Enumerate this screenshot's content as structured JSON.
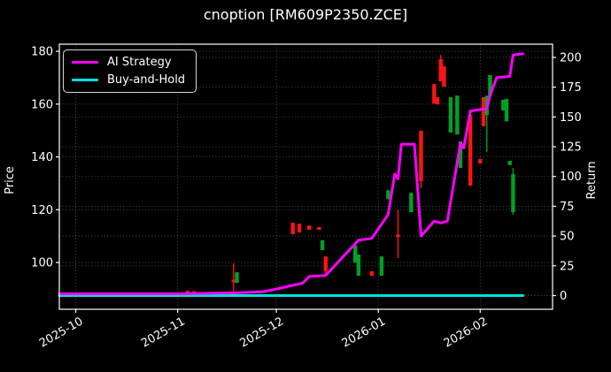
{
  "title": "cnoption [RM609P2350.ZCE]",
  "chart_data": {
    "type": "candlestick+line",
    "title": "cnoption [RM609P2350.ZCE]",
    "ylabel_left": "Price",
    "ylabel_right": "Return",
    "x_tick_labels": [
      "2025-10",
      "2025-11",
      "2025-12",
      "2026-01",
      "2026-02"
    ],
    "x_tick_dates": [
      "2025-10-01",
      "2025-11-01",
      "2025-12-01",
      "2026-01-01",
      "2026-02-01"
    ],
    "x_domain": [
      "2025-09-26",
      "2026-02-23"
    ],
    "price_ticks": [
      100,
      120,
      140,
      160,
      180
    ],
    "price_ylim": [
      82.3,
      182.7
    ],
    "return_ticks": [
      0,
      25,
      50,
      75,
      100,
      125,
      150,
      175,
      200
    ],
    "return_ylim": [
      -11.5,
      211.1
    ],
    "grid": true,
    "legend_position": "upper-left",
    "colors": {
      "background": "#000000",
      "text": "#ffffff",
      "grid": "#ffffff",
      "ai_strategy": "#ff00ff",
      "buy_and_hold": "#00dfdf",
      "candle_up": "#00a028",
      "candle_down": "#ff1414"
    },
    "candles": [
      {
        "date": "2025-11-04",
        "high": 89.3,
        "low": 88.6,
        "body_high": 89.3,
        "body_low": 88.6,
        "dir": "down"
      },
      {
        "date": "2025-11-06",
        "high": 89.2,
        "low": 88.8,
        "body_high": 89.2,
        "body_low": 88.8,
        "dir": "down"
      },
      {
        "date": "2025-11-18",
        "high": 99.7,
        "low": 88.0,
        "body_high": 93.5,
        "body_low": 92.5,
        "dir": "down"
      },
      {
        "date": "2025-11-19",
        "high": 96.3,
        "low": 92.3,
        "body_high": 96.3,
        "body_low": 92.3,
        "dir": "up"
      },
      {
        "date": "2025-12-06",
        "high": 115.1,
        "low": 110.7,
        "body_high": 115.1,
        "body_low": 110.7,
        "dir": "down"
      },
      {
        "date": "2025-12-08",
        "high": 114.7,
        "low": 111.4,
        "body_high": 114.7,
        "body_low": 111.4,
        "dir": "down"
      },
      {
        "date": "2025-12-11",
        "high": 114.0,
        "low": 112.4,
        "body_high": 114.0,
        "body_low": 112.4,
        "dir": "down"
      },
      {
        "date": "2025-12-14",
        "high": 113.4,
        "low": 112.4,
        "body_high": 113.4,
        "body_low": 112.4,
        "dir": "down"
      },
      {
        "date": "2025-12-15",
        "high": 108.4,
        "low": 104.7,
        "body_high": 108.4,
        "body_low": 104.7,
        "dir": "up"
      },
      {
        "date": "2025-12-16",
        "high": 102.3,
        "low": 95.6,
        "body_high": 102.3,
        "body_low": 96.6,
        "dir": "down"
      },
      {
        "date": "2025-12-25",
        "high": 106.4,
        "low": 100.0,
        "body_high": 106.4,
        "body_low": 100.0,
        "dir": "up"
      },
      {
        "date": "2025-12-26",
        "high": 103.0,
        "low": 95.0,
        "body_high": 103.0,
        "body_low": 95.0,
        "dir": "up"
      },
      {
        "date": "2025-12-30",
        "high": 96.7,
        "low": 95.0,
        "body_high": 96.7,
        "body_low": 95.0,
        "dir": "down"
      },
      {
        "date": "2026-01-02",
        "high": 102.3,
        "low": 95.0,
        "body_high": 102.3,
        "body_low": 95.0,
        "dir": "up"
      },
      {
        "date": "2026-01-04",
        "high": 127.4,
        "low": 124.0,
        "body_high": 127.4,
        "body_low": 124.0,
        "dir": "up"
      },
      {
        "date": "2026-01-07",
        "high": 120.1,
        "low": 101.7,
        "body_high": 110.6,
        "body_low": 109.6,
        "dir": "down"
      },
      {
        "date": "2026-01-11",
        "high": 126.4,
        "low": 119.1,
        "body_high": 126.4,
        "body_low": 119.1,
        "dir": "up"
      },
      {
        "date": "2026-01-14",
        "high": 149.9,
        "low": 128.1,
        "body_high": 149.9,
        "body_low": 130.8,
        "dir": "down"
      },
      {
        "date": "2026-01-18",
        "high": 167.6,
        "low": 160.2,
        "body_high": 167.6,
        "body_low": 160.2,
        "dir": "down"
      },
      {
        "date": "2026-01-19",
        "high": 162.6,
        "low": 159.9,
        "body_high": 162.6,
        "body_low": 159.9,
        "dir": "down"
      },
      {
        "date": "2026-01-20",
        "high": 178.6,
        "low": 168.6,
        "body_high": 177.0,
        "body_low": 168.6,
        "dir": "down"
      },
      {
        "date": "2026-01-21",
        "high": 174.3,
        "low": 166.6,
        "body_high": 174.3,
        "body_low": 166.6,
        "dir": "down"
      },
      {
        "date": "2026-01-23",
        "high": 162.6,
        "low": 149.2,
        "body_high": 162.6,
        "body_low": 149.2,
        "dir": "up"
      },
      {
        "date": "2026-01-25",
        "high": 163.2,
        "low": 148.5,
        "body_high": 163.2,
        "body_low": 148.5,
        "dir": "up"
      },
      {
        "date": "2026-01-26",
        "high": 145.9,
        "low": 135.8,
        "body_high": 145.9,
        "body_low": 135.8,
        "dir": "up"
      },
      {
        "date": "2026-01-29",
        "high": 155.9,
        "low": 129.1,
        "body_high": 155.9,
        "body_low": 129.1,
        "dir": "down"
      },
      {
        "date": "2026-02-01",
        "high": 139.2,
        "low": 137.5,
        "body_high": 139.2,
        "body_low": 137.5,
        "dir": "down"
      },
      {
        "date": "2026-02-02",
        "high": 162.6,
        "low": 151.6,
        "body_high": 162.6,
        "body_low": 151.6,
        "dir": "down"
      },
      {
        "date": "2026-02-03",
        "high": 163.2,
        "low": 141.8,
        "body_high": 163.2,
        "body_low": 155.9,
        "dir": "up"
      },
      {
        "date": "2026-02-04",
        "high": 171.0,
        "low": 163.2,
        "body_high": 171.0,
        "body_low": 163.2,
        "dir": "up"
      },
      {
        "date": "2026-02-08",
        "high": 161.6,
        "low": 157.6,
        "body_high": 161.6,
        "body_low": 157.6,
        "dir": "up"
      },
      {
        "date": "2026-02-09",
        "high": 162.0,
        "low": 153.5,
        "body_high": 162.0,
        "body_low": 153.5,
        "dir": "up"
      },
      {
        "date": "2026-02-10",
        "high": 138.5,
        "low": 136.9,
        "body_high": 138.5,
        "body_low": 136.9,
        "dir": "up"
      },
      {
        "date": "2026-02-11",
        "high": 135.8,
        "low": 118.1,
        "body_high": 133.5,
        "body_low": 119.1,
        "dir": "up"
      }
    ],
    "series": [
      {
        "name": "AI Strategy",
        "axis": "return",
        "color_key": "ai_strategy",
        "points": [
          [
            "2025-09-26",
            1.5
          ],
          [
            "2025-11-01",
            1.5
          ],
          [
            "2025-11-18",
            2.2
          ],
          [
            "2025-11-27",
            3.3
          ],
          [
            "2025-12-01",
            5.5
          ],
          [
            "2025-12-09",
            10.5
          ],
          [
            "2025-12-11",
            16.0
          ],
          [
            "2025-12-16",
            17.0
          ],
          [
            "2025-12-26",
            46.5
          ],
          [
            "2025-12-30",
            48.0
          ],
          [
            "2026-01-04",
            68.0
          ],
          [
            "2026-01-06",
            102.0
          ],
          [
            "2026-01-07",
            98.0
          ],
          [
            "2026-01-08",
            127.0
          ],
          [
            "2026-01-12",
            127.0
          ],
          [
            "2026-01-14",
            50.0
          ],
          [
            "2026-01-18",
            62.5
          ],
          [
            "2026-01-20",
            61.0
          ],
          [
            "2026-01-22",
            62.5
          ],
          [
            "2026-01-26",
            128.0
          ],
          [
            "2026-01-27",
            124.0
          ],
          [
            "2026-01-29",
            155.0
          ],
          [
            "2026-02-03",
            157.0
          ],
          [
            "2026-02-04",
            168.0
          ],
          [
            "2026-02-06",
            183.0
          ],
          [
            "2026-02-10",
            184.0
          ],
          [
            "2026-02-11",
            202.0
          ],
          [
            "2026-02-14",
            203.0
          ]
        ]
      },
      {
        "name": "Buy-and-Hold",
        "axis": "return",
        "color_key": "buy_and_hold",
        "points": [
          [
            "2025-09-26",
            0.0
          ],
          [
            "2026-02-14",
            0.0
          ]
        ]
      }
    ]
  }
}
